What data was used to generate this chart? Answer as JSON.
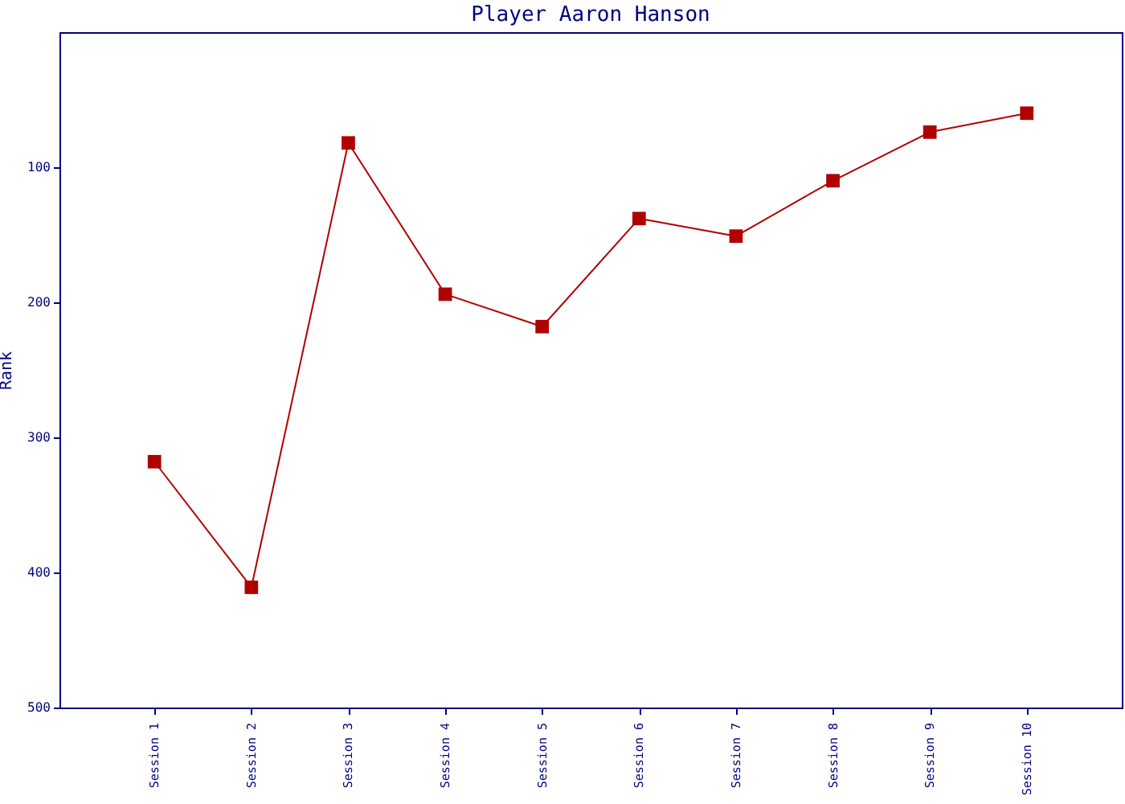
{
  "chart_data": {
    "type": "line",
    "title": "Player Aaron Hanson",
    "ylabel": "Rank",
    "categories": [
      "Session 1",
      "Session 2",
      "Session 3",
      "Session 4",
      "Session 5",
      "Session 6",
      "Session 7",
      "Session 8",
      "Session 9",
      "Session 10"
    ],
    "series": [
      {
        "color": "#b00000",
        "values": [
          318,
          411,
          82,
          194,
          218,
          138,
          151,
          110,
          74,
          60
        ]
      }
    ],
    "ylim": [
      500,
      0
    ],
    "yticks": [
      100,
      200,
      300,
      400,
      500
    ],
    "grid": false,
    "legend": false,
    "marker": "square",
    "line_style": "solid"
  }
}
